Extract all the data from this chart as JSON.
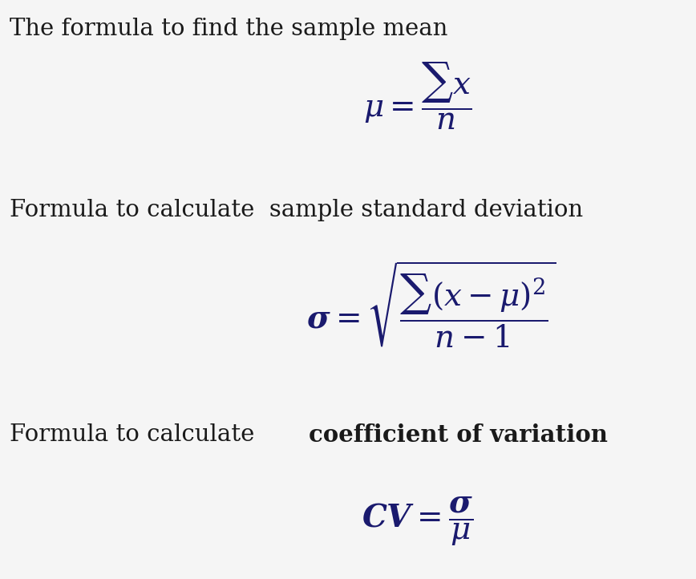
{
  "background_color": "#f5f5f5",
  "text_color_black": "#1a1a1a",
  "text_color_blue": "#1a1a6e",
  "title1": "The formula to find the sample mean",
  "title2": "Formula to calculate  sample standard deviation",
  "title3_normal": "Formula to calculate ",
  "title3_bold": "coefficient of variation",
  "formula1": "$\\mu = \\dfrac{\\sum x}{n}$",
  "formula2": "$\\boldsymbol{\\sigma} = \\sqrt{\\dfrac{\\sum (x - \\mu)^2}{n - 1}}$",
  "formula3": "$\\boldsymbol{CV} = \\dfrac{\\boldsymbol{\\sigma}}{\\mu}$",
  "fig_width": 8.68,
  "fig_height": 7.22,
  "dpi": 100,
  "header_fontsize": 21,
  "formula_fontsize": 28
}
